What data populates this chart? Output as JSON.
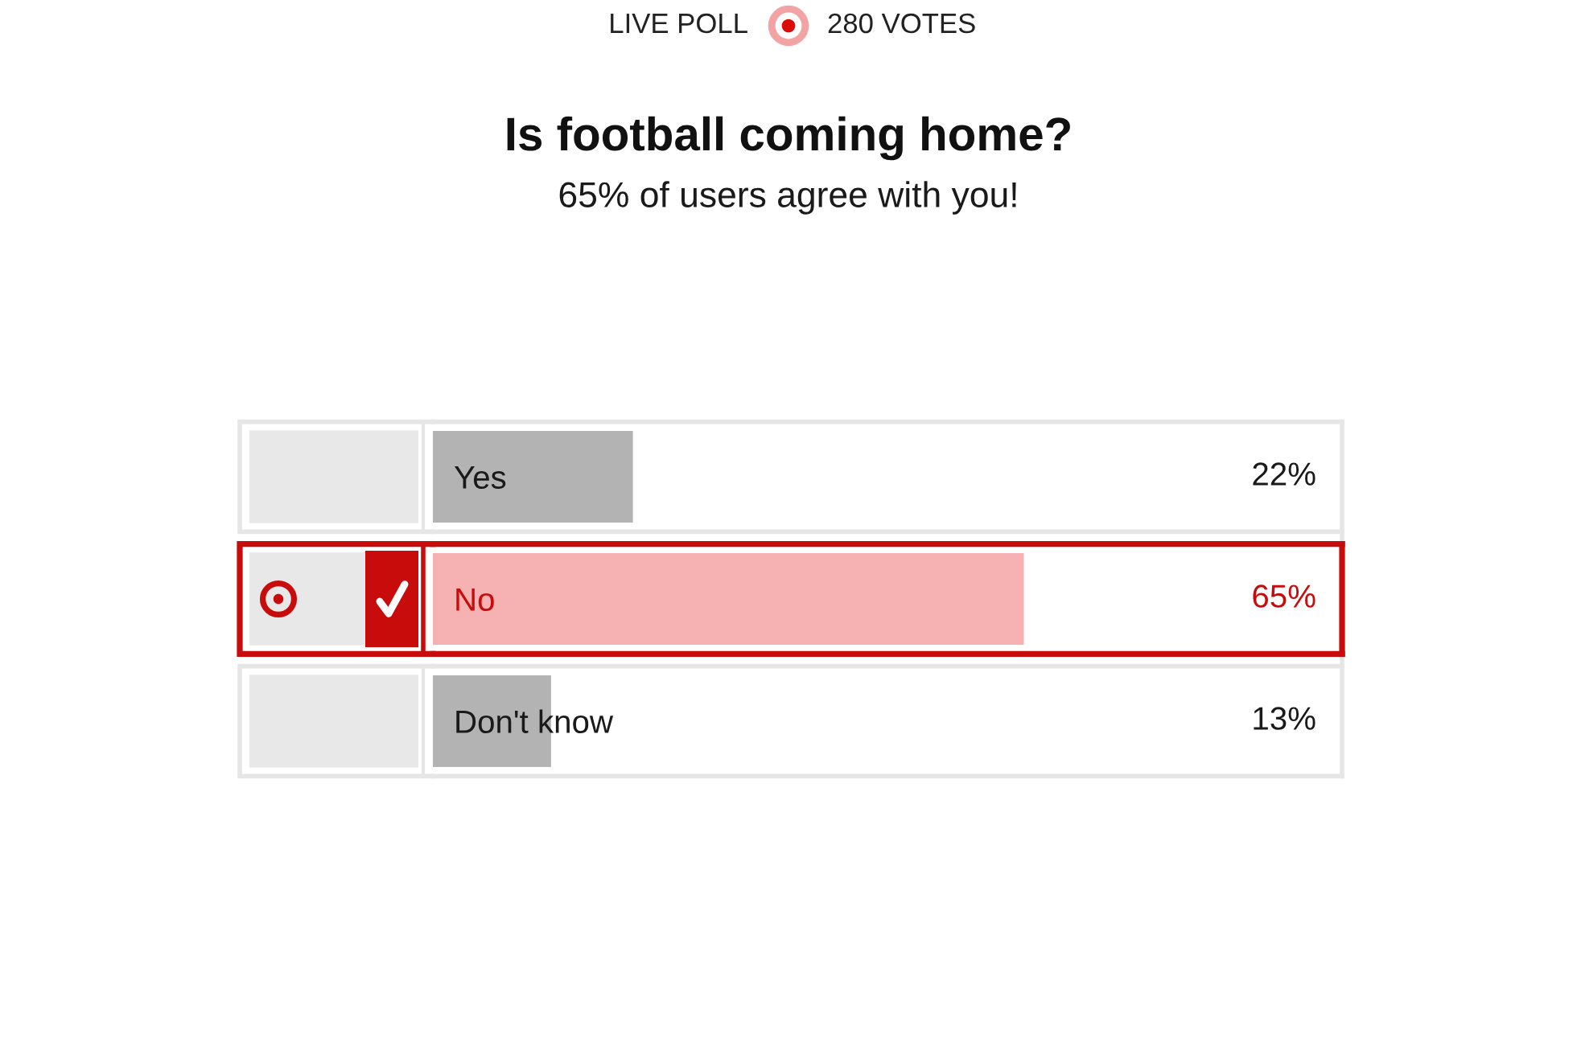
{
  "chart_data": {
    "type": "bar",
    "orientation": "horizontal",
    "title": "Is football coming home?",
    "subtitle": "65% of users agree with you!",
    "annotations": [
      "LIVE POLL",
      "280 VOTES"
    ],
    "categories": [
      "Yes",
      "No",
      "Don't know"
    ],
    "values": [
      22,
      65,
      13
    ],
    "colors": [
      "#b3b3b3",
      "#f6b2b2",
      "#b3b3b3"
    ],
    "value_labels": [
      "22%",
      "65%",
      "13%"
    ],
    "xlim": [
      0,
      100
    ],
    "tick_labels": "y"
  }
}
